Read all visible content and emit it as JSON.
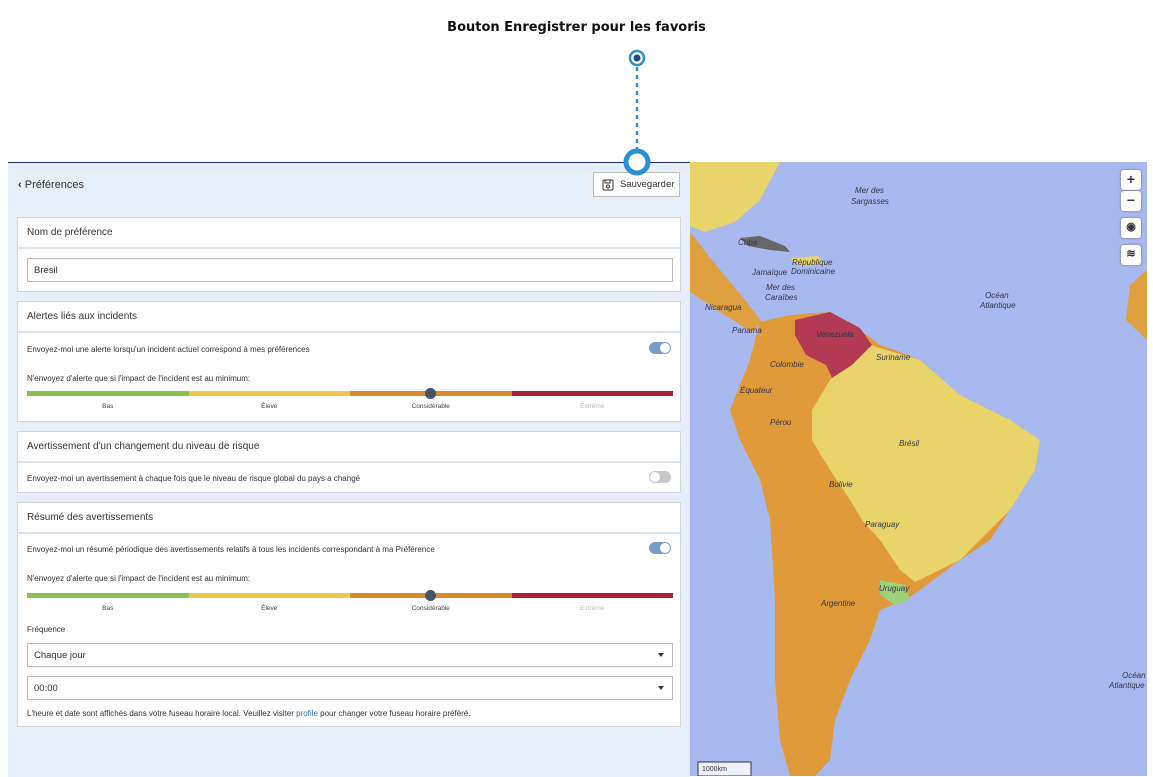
{
  "annotation": {
    "label": "Bouton Enregistrer pour les favoris"
  },
  "header": {
    "back": "Préférences",
    "save_button": "Sauvegarder"
  },
  "preference_name": {
    "title": "Nom de préférence",
    "value": "Bresil"
  },
  "incident_alerts": {
    "title": "Alertes liés aux incidents",
    "toggle_label": "Envoyez-moi une alerte lorsqu'un incident actuel correspond à mes préférences",
    "toggle_on": true,
    "impact_label": "N'envoyez d'alerte que si l'impact de l'incident est au minimum:",
    "levels": [
      "Bas",
      "Élevé",
      "Considérable",
      "Extrême"
    ],
    "selected_level": 2
  },
  "risk_change": {
    "title": "Avertissement d'un changement du niveau de risque",
    "toggle_label": "Envoyez-moi un avertissement à chaque fois que le niveau de risque global du pays a changé",
    "toggle_on": false
  },
  "summary": {
    "title": "Résumé des avertissements",
    "toggle_label": "Envoyez-moi un résumé périodique des avertissements relatifs à tous les incidents correspondant à ma Préférence",
    "toggle_on": true,
    "impact_label": "N'envoyez d'alerte que si l'impact de l'incident est au minimum:",
    "levels": [
      "Bas",
      "Élevé",
      "Considérable",
      "Extrême"
    ],
    "selected_level": 2,
    "frequency_label": "Fréquence",
    "frequency": "Chaque jour",
    "time": "00:00",
    "note_before": "L'heure et date sont affichés dans votre fuseau horaire local. Veuillez visiter",
    "note_link": "profile",
    "note_after": "pour changer votre fuseau horaire préféré."
  },
  "map": {
    "zoom_in": "+",
    "zoom_out": "−",
    "scale": "1000km",
    "labels": [
      "Mer des",
      "Sargasses",
      "Cuba",
      "République",
      "Dominicaine",
      "Jamaïque",
      "Mer des",
      "Caraïbes",
      "Océan",
      "Atlantique",
      "Nicaragua",
      "Panama",
      "Venezuela",
      "Colombie",
      "Suriname",
      "Équateur",
      "Pérou",
      "Brésil",
      "Bolivie",
      "Paraguay",
      "Uruguay",
      "Argentine",
      "Océan",
      "Atlantique"
    ]
  }
}
